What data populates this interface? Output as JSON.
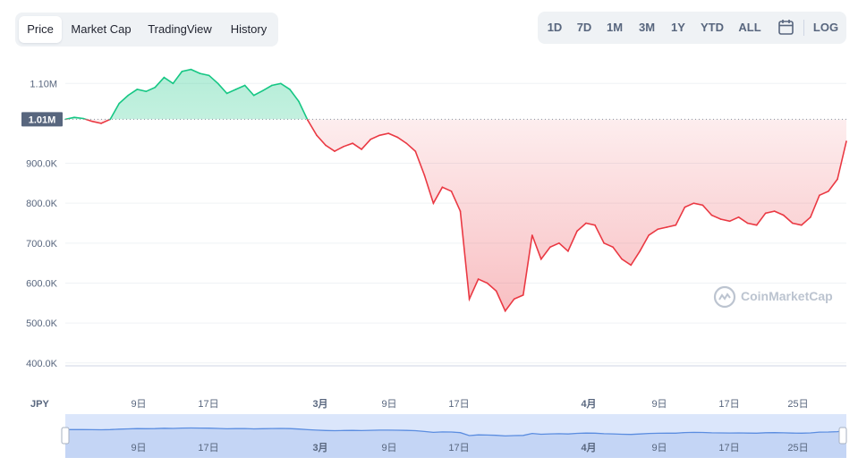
{
  "tabs": [
    {
      "label": "Price",
      "active": true
    },
    {
      "label": "Market Cap",
      "active": false
    },
    {
      "label": "TradingView",
      "active": false
    },
    {
      "label": "History",
      "active": false
    }
  ],
  "ranges": [
    "1D",
    "7D",
    "1M",
    "3M",
    "1Y",
    "YTD",
    "ALL"
  ],
  "range_icon": "calendar-icon",
  "log_label": "LOG",
  "watermark": "CoinMarketCap",
  "colors": {
    "up": "#16c784",
    "down": "#ea3943",
    "navigator": "#5b8de0",
    "baseline_label_bg": "#58667e"
  },
  "chart_data": {
    "type": "area",
    "currency": "JPY",
    "baseline": 1010000,
    "baseline_label": "1.01M",
    "y_ticks": [
      400000,
      500000,
      600000,
      700000,
      800000,
      900000,
      1100000
    ],
    "y_tick_labels": [
      "400.0K",
      "500.0K",
      "600.0K",
      "700.0K",
      "800.0K",
      "900.0K",
      "1.10M"
    ],
    "ylim": [
      330000,
      1170000
    ],
    "x_labels": [
      "9日",
      "17日",
      "3月",
      "9日",
      "17日",
      "4月",
      "9日",
      "17日",
      "25日"
    ],
    "x": [
      "02-01",
      "02-02",
      "02-03",
      "02-04",
      "02-05",
      "02-06",
      "02-07",
      "02-08",
      "02-09",
      "02-10",
      "02-11",
      "02-12",
      "02-13",
      "02-14",
      "02-15",
      "02-16",
      "02-17",
      "02-18",
      "02-19",
      "02-20",
      "02-21",
      "02-22",
      "02-23",
      "02-24",
      "02-25",
      "02-26",
      "02-27",
      "02-28",
      "03-01",
      "03-02",
      "03-03",
      "03-04",
      "03-05",
      "03-06",
      "03-07",
      "03-08",
      "03-09",
      "03-10",
      "03-11",
      "03-12",
      "03-13",
      "03-14",
      "03-15",
      "03-16",
      "03-17",
      "03-18",
      "03-19",
      "03-20",
      "03-21",
      "03-22",
      "03-23",
      "03-24",
      "03-25",
      "03-26",
      "03-27",
      "03-28",
      "03-29",
      "03-30",
      "03-31",
      "04-01",
      "04-02",
      "04-03",
      "04-04",
      "04-05",
      "04-06",
      "04-07",
      "04-08",
      "04-09",
      "04-10",
      "04-11",
      "04-12",
      "04-13",
      "04-14",
      "04-15",
      "04-16",
      "04-17",
      "04-18",
      "04-19",
      "04-20",
      "04-21",
      "04-22",
      "04-23",
      "04-24",
      "04-25",
      "04-26",
      "04-27",
      "04-28",
      "04-29"
    ],
    "values": [
      1010000,
      1015000,
      1012000,
      1005000,
      1000000,
      1010000,
      1050000,
      1070000,
      1085000,
      1080000,
      1090000,
      1115000,
      1100000,
      1130000,
      1135000,
      1125000,
      1120000,
      1100000,
      1075000,
      1085000,
      1095000,
      1070000,
      1082000,
      1095000,
      1100000,
      1085000,
      1055000,
      1008000,
      970000,
      945000,
      930000,
      942000,
      950000,
      935000,
      960000,
      970000,
      975000,
      965000,
      950000,
      930000,
      870000,
      800000,
      840000,
      830000,
      780000,
      560000,
      610000,
      600000,
      580000,
      530000,
      560000,
      570000,
      720000,
      660000,
      690000,
      700000,
      680000,
      730000,
      750000,
      745000,
      700000,
      690000,
      660000,
      645000,
      680000,
      720000,
      735000,
      740000,
      745000,
      790000,
      800000,
      795000,
      770000,
      760000,
      755000,
      765000,
      750000,
      745000,
      775000,
      780000,
      770000,
      750000,
      745000,
      765000,
      820000,
      830000,
      860000,
      955000
    ],
    "annotations": {
      "min": 465000,
      "max": 1150000,
      "last_peak": 1000000
    }
  },
  "navigator": {
    "x_labels": [
      "9日",
      "17日",
      "3月",
      "9日",
      "17日",
      "4月",
      "9日",
      "17日",
      "25日"
    ]
  }
}
